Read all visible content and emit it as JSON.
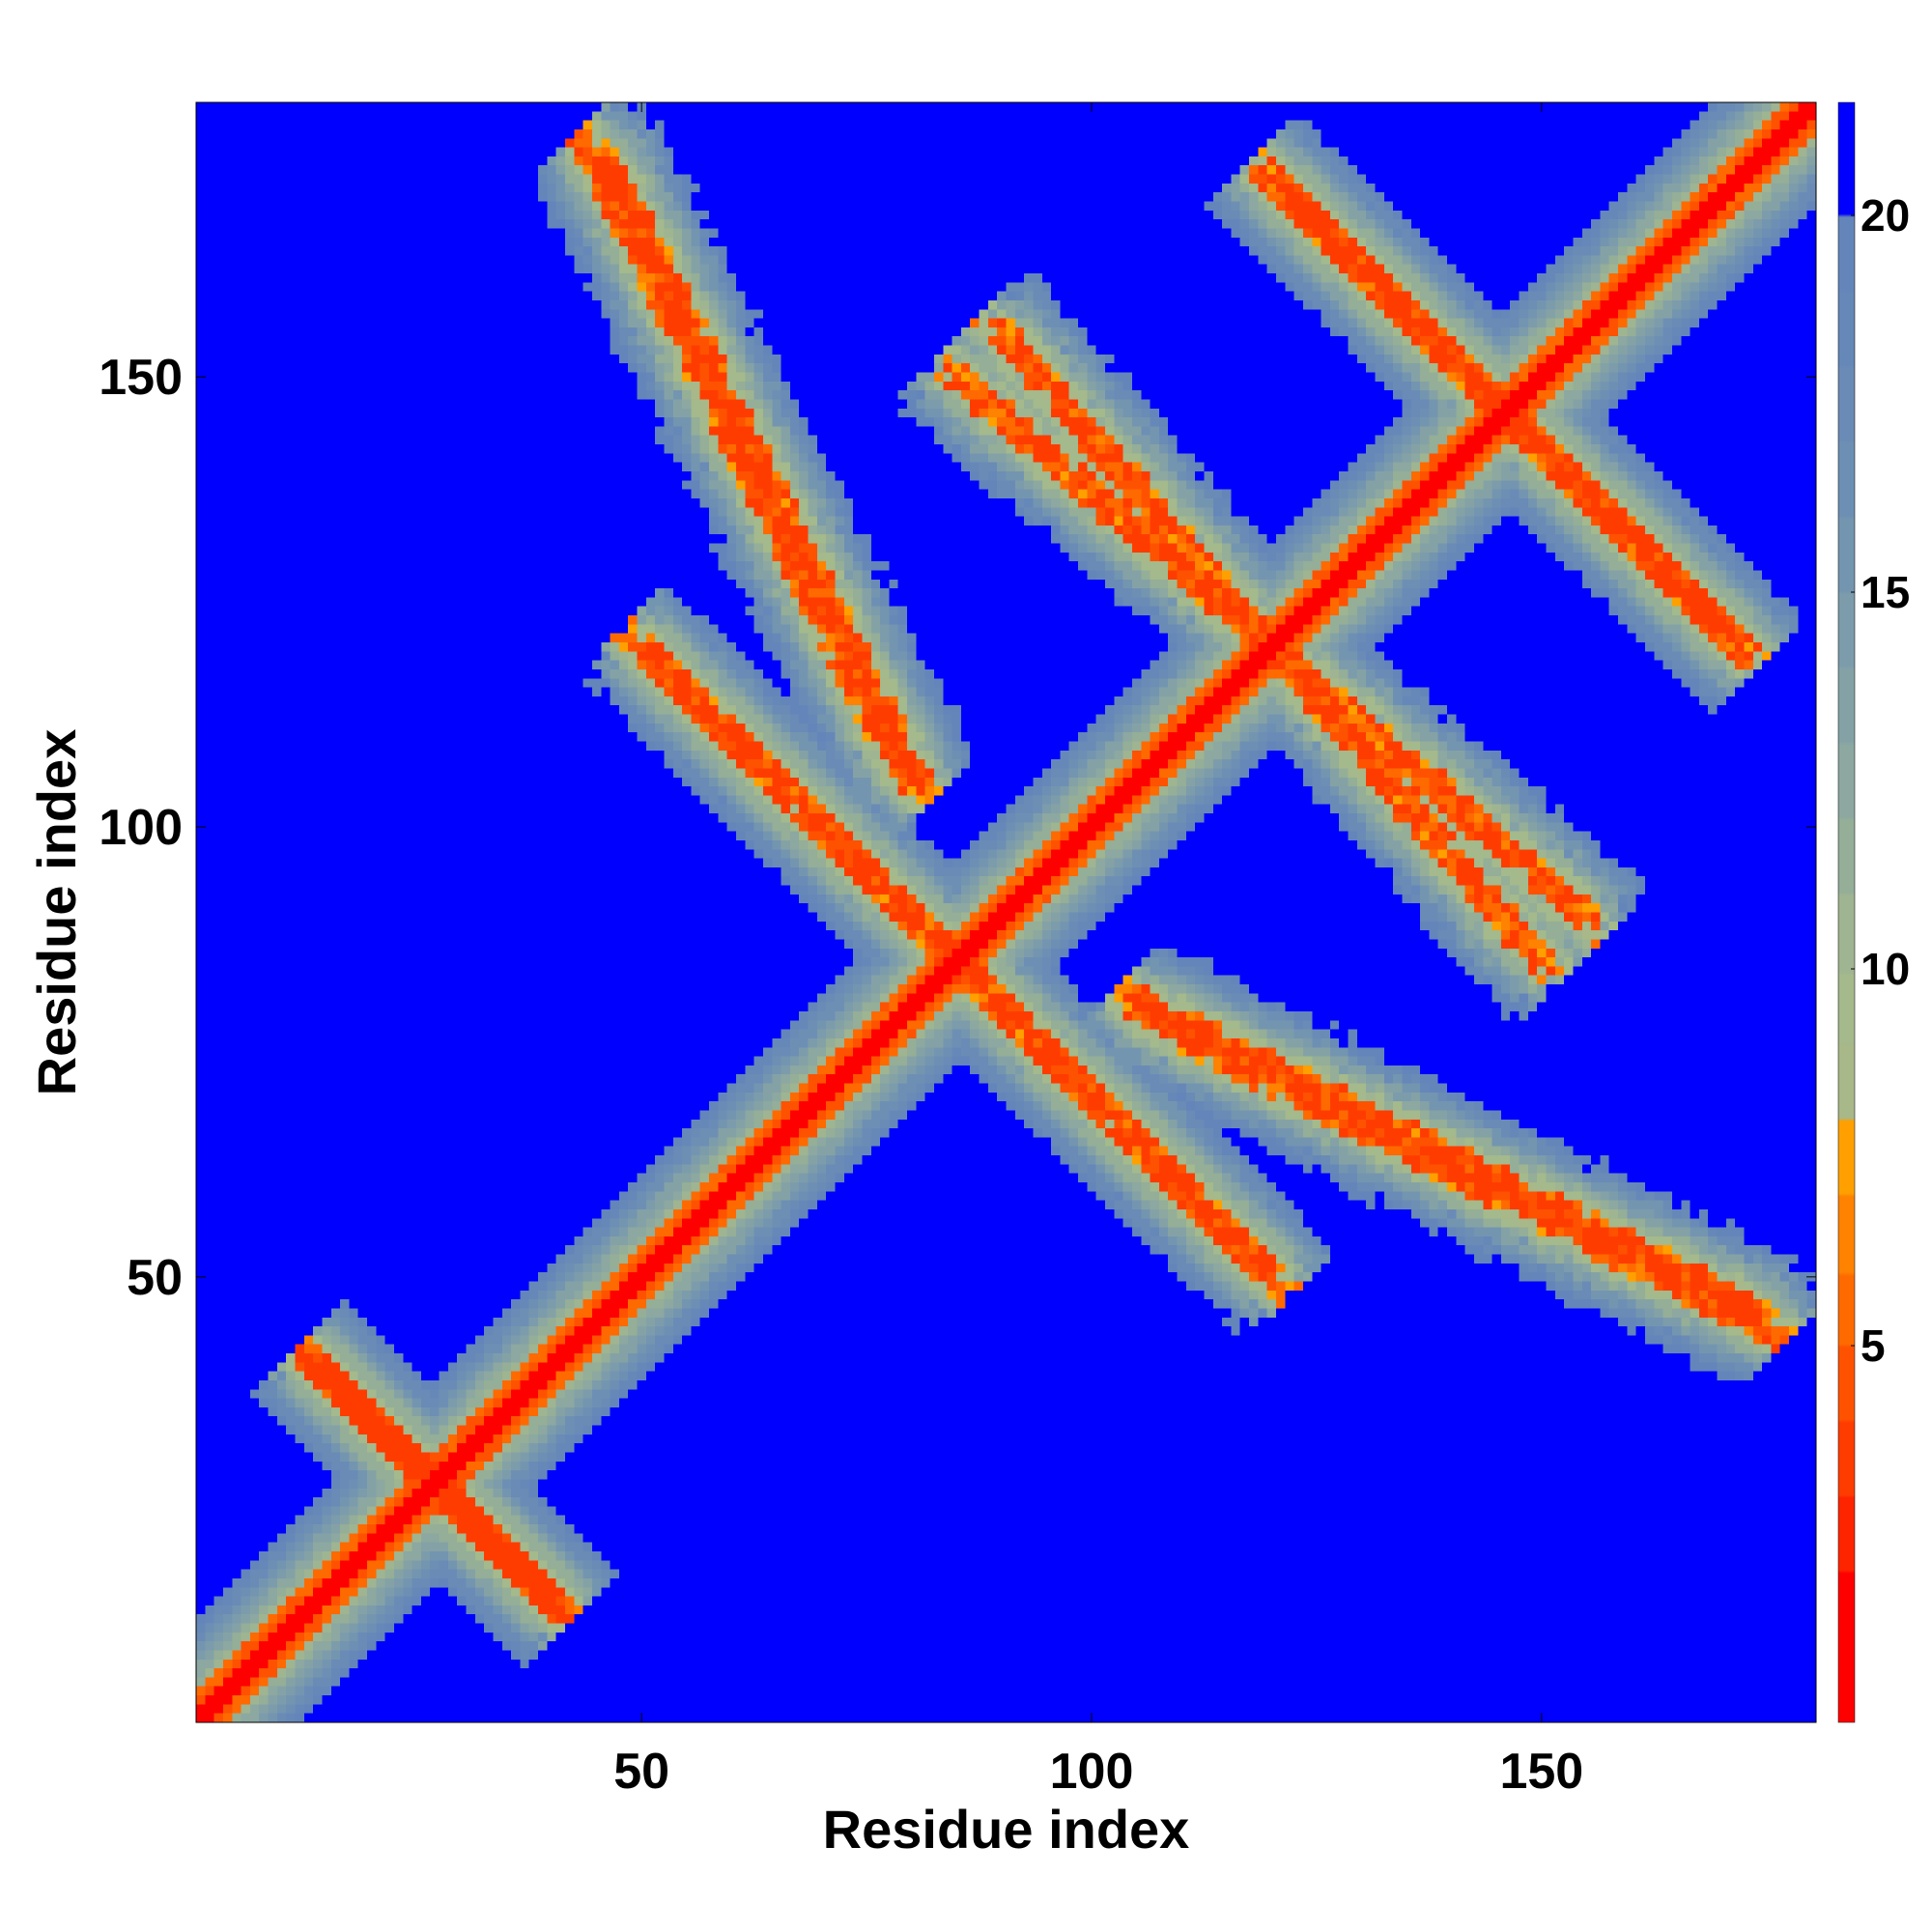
{
  "chart_data": {
    "type": "heatmap",
    "title": "",
    "xlabel": "Residue index",
    "ylabel": "Residue index",
    "xlim": [
      1,
      180
    ],
    "ylim": [
      1,
      180
    ],
    "x_ticks": [
      50,
      100,
      150
    ],
    "y_ticks": [
      50,
      100,
      150
    ],
    "colorbar": {
      "range": [
        0,
        21.5
      ],
      "ticks": [
        5,
        10,
        15,
        20
      ],
      "levels": [
        {
          "max": 1,
          "color": "#ff0000"
        },
        {
          "max": 2,
          "color": "#ff0000"
        },
        {
          "max": 3,
          "color": "#ff2400"
        },
        {
          "max": 4,
          "color": "#ff3c00"
        },
        {
          "max": 5,
          "color": "#ff5200"
        },
        {
          "max": 6,
          "color": "#ff6a00"
        },
        {
          "max": 7,
          "color": "#ff8200"
        },
        {
          "max": 8,
          "color": "#ffa000"
        },
        {
          "max": 9,
          "color": "#a8b888"
        },
        {
          "max": 10,
          "color": "#a4b98c"
        },
        {
          "max": 11,
          "color": "#9fb491"
        },
        {
          "max": 12,
          "color": "#94ae98"
        },
        {
          "max": 13,
          "color": "#8ca8a0"
        },
        {
          "max": 14,
          "color": "#84a2a6"
        },
        {
          "max": 15,
          "color": "#7c9cac"
        },
        {
          "max": 16,
          "color": "#7495b0"
        },
        {
          "max": 17,
          "color": "#6e8fb4"
        },
        {
          "max": 18,
          "color": "#6a8bb6"
        },
        {
          "max": 19,
          "color": "#6688b8"
        },
        {
          "max": 20,
          "color": "#6385ba"
        },
        {
          "max": 21.5,
          "color": "#0000ff"
        }
      ]
    },
    "description_of_values": "Pairwise residue distance map (symmetric); red along diagonal (distance < 5), orange/green/steel near contacts, blue >= 20",
    "contact_bands": [
      {
        "type": "diagonal",
        "from": [
          1,
          1
        ],
        "to": [
          180,
          180
        ]
      },
      {
        "type": "antiparallel",
        "center": [
          85,
          85
        ],
        "extent": [
          [
            50,
            120
          ],
          [
            120,
            50
          ]
        ]
      },
      {
        "type": "antiparallel",
        "center": [
          60,
          140
        ],
        "extent": [
          [
            45,
            175
          ],
          [
            80,
            105
          ]
        ]
      },
      {
        "type": "antiparallel",
        "center": [
          140,
          60
        ],
        "extent": [
          [
            105,
            80
          ],
          [
            175,
            45
          ]
        ]
      },
      {
        "type": "antiparallel",
        "center": [
          115,
          115
        ],
        "extent": [
          [
            90,
            155
          ],
          [
            150,
            85
          ]
        ]
      },
      {
        "type": "antiparallel",
        "center": [
          145,
          145
        ],
        "extent": [
          [
            120,
            172
          ],
          [
            172,
            120
          ]
        ]
      },
      {
        "type": "antiparallel",
        "center": [
          25,
          25
        ],
        "extent": [
          [
            14,
            40
          ],
          [
            40,
            14
          ]
        ]
      }
    ],
    "colors": {
      "background": "#0000ff",
      "diagonal": "#ff0000"
    }
  }
}
